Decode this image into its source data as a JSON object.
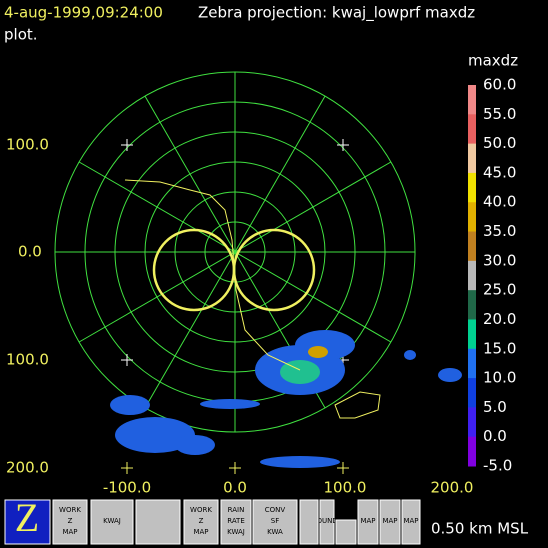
{
  "header": {
    "timestamp": "4-aug-1999,09:24:00",
    "title": "Zebra projection: kwaj_lowprf maxdz",
    "title_wrap": "plot."
  },
  "colorbar": {
    "label": "maxdz",
    "ticks": [
      "60.0",
      "55.0",
      "50.0",
      "45.0",
      "40.0",
      "35.0",
      "30.0",
      "25.0",
      "20.0",
      "15.0",
      "10.0",
      "5.0",
      "0.0",
      "-5.0"
    ]
  },
  "axes": {
    "y_labels": [
      "100.0",
      "0.0",
      "100.0",
      "200.0"
    ],
    "x_labels": [
      "-100.0",
      "0.0",
      "100.0",
      "200.0"
    ]
  },
  "toolbar": {
    "buttons": [
      {
        "lines": [
          "WORK",
          "Z",
          "MAP"
        ]
      },
      {
        "lines": [
          "KWAJ"
        ]
      },
      {
        "lines": [
          "WORK",
          "Z",
          "MAP"
        ]
      },
      {
        "lines": [
          "RAIN",
          "RATE",
          "KWAJ"
        ]
      },
      {
        "lines": [
          "CONV",
          "SF",
          "KWA"
        ]
      },
      {
        "lines": [
          "BOUNDS"
        ]
      },
      {
        "lines": [
          "MAP"
        ]
      },
      {
        "lines": [
          "MAP"
        ]
      },
      {
        "lines": [
          "MAP"
        ]
      }
    ],
    "altitude": "0.50 km MSL"
  }
}
